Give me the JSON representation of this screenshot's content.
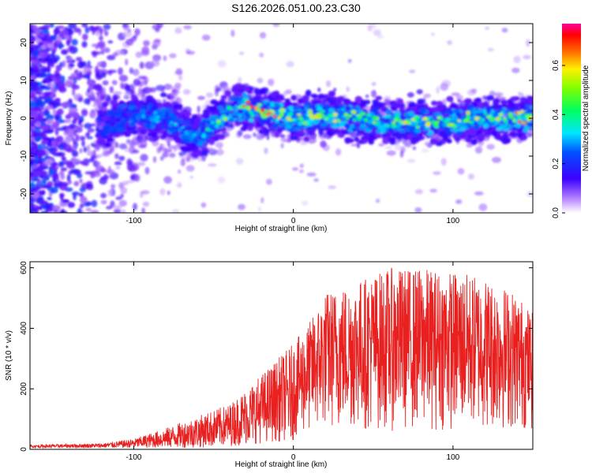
{
  "title": "S126.2026.051.00.23.C30",
  "chart_data": [
    {
      "type": "heatmap",
      "xlabel": "Height of straight line (km)",
      "ylabel": "Frequency (Hz)",
      "xlim": [
        -165,
        150
      ],
      "ylim": [
        -25,
        25
      ],
      "xticks": [
        -100,
        0,
        100
      ],
      "yticks": [
        -20,
        -10,
        0,
        10,
        20
      ],
      "colorbar": {
        "label": "Normalized spectral amplitude",
        "range": [
          0.0,
          0.77
        ],
        "ticks": [
          0.0,
          0.2,
          0.4,
          0.6
        ]
      },
      "ridge": {
        "description_points_x": [
          -120,
          -100,
          -80,
          -60,
          -45,
          -35,
          -20,
          0,
          20,
          40,
          60,
          80,
          100,
          120,
          145
        ],
        "center_freq": [
          -2,
          1,
          0,
          -5,
          0,
          3,
          2,
          0,
          1,
          0,
          -1,
          -1,
          -1,
          0,
          0
        ],
        "peak_amplitude": [
          0.15,
          0.3,
          0.35,
          0.35,
          0.5,
          0.6,
          0.65,
          0.55,
          0.55,
          0.5,
          0.5,
          0.55,
          0.5,
          0.55,
          0.65
        ]
      },
      "grid": false
    },
    {
      "type": "line",
      "xlabel": "Height of straight line (km)",
      "ylabel": "SNR (10 * v/v)",
      "xlim": [
        -165,
        150
      ],
      "ylim": [
        0,
        620
      ],
      "xticks": [
        -100,
        0,
        100
      ],
      "yticks": [
        0,
        200,
        400,
        600
      ],
      "color": "#e8201f",
      "envelope": {
        "x": [
          -165,
          -120,
          -100,
          -80,
          -60,
          -40,
          -20,
          0,
          10,
          20,
          40,
          60,
          80,
          100,
          120,
          140,
          150
        ],
        "max": [
          15,
          20,
          35,
          70,
          110,
          150,
          250,
          350,
          420,
          520,
          560,
          600,
          600,
          590,
          570,
          520,
          450
        ],
        "min": [
          5,
          5,
          5,
          5,
          5,
          10,
          20,
          30,
          50,
          60,
          60,
          60,
          60,
          60,
          60,
          60,
          60
        ]
      },
      "grid": false
    }
  ]
}
